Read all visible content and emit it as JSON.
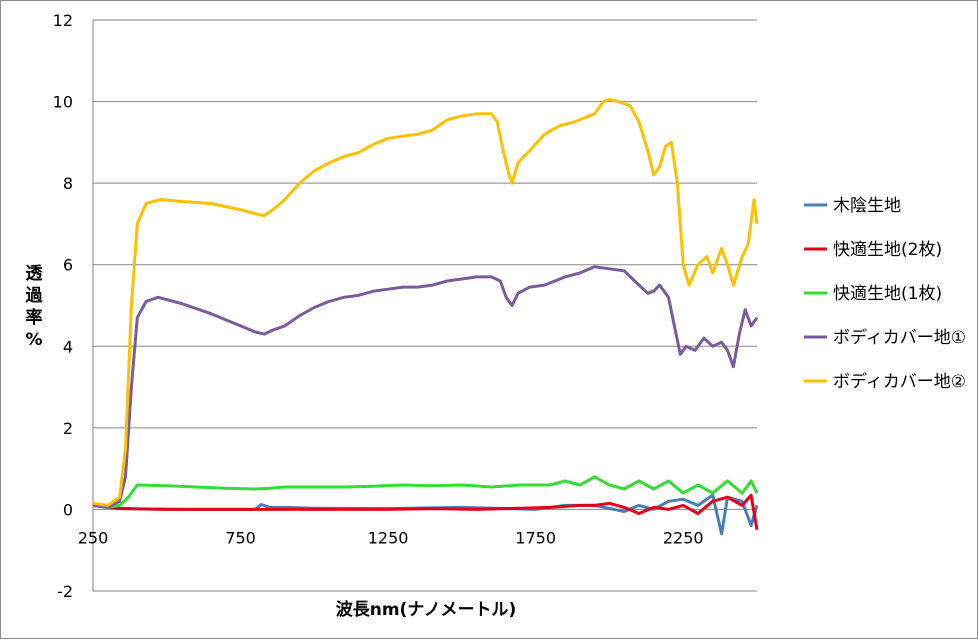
{
  "chart_data": {
    "type": "line",
    "title": "",
    "xlabel": "波長nm(ナノメートル)",
    "ylabel": "透過率%",
    "ylabel_chars": [
      "透",
      "過",
      "率",
      "%"
    ],
    "xlim": [
      250,
      2500
    ],
    "ylim": [
      -2,
      12
    ],
    "x_ticks": [
      250,
      750,
      1250,
      1750,
      2250
    ],
    "y_ticks": [
      -2,
      0,
      2,
      4,
      6,
      8,
      10,
      12
    ],
    "grid": "horizontal",
    "legend_position": "right",
    "series": [
      {
        "name": "木陰生地",
        "color": "#4a7ebb",
        "points": [
          [
            250,
            0.1
          ],
          [
            300,
            0.05
          ],
          [
            330,
            0.03
          ],
          [
            400,
            0.01
          ],
          [
            600,
            0.0
          ],
          [
            800,
            0.0
          ],
          [
            820,
            0.12
          ],
          [
            850,
            0.05
          ],
          [
            900,
            0.05
          ],
          [
            1000,
            0.03
          ],
          [
            1250,
            0.02
          ],
          [
            1500,
            0.05
          ],
          [
            1750,
            0.0
          ],
          [
            1850,
            0.1
          ],
          [
            1950,
            0.1
          ],
          [
            2050,
            -0.05
          ],
          [
            2100,
            0.1
          ],
          [
            2150,
            0.0
          ],
          [
            2200,
            0.2
          ],
          [
            2250,
            0.25
          ],
          [
            2300,
            0.1
          ],
          [
            2350,
            0.35
          ],
          [
            2380,
            -0.6
          ],
          [
            2400,
            0.3
          ],
          [
            2450,
            0.2
          ],
          [
            2480,
            -0.4
          ],
          [
            2500,
            0.1
          ]
        ]
      },
      {
        "name": "快適生地(2枚)",
        "color": "#e3001b",
        "points": [
          [
            250,
            0.15
          ],
          [
            280,
            0.1
          ],
          [
            300,
            0.05
          ],
          [
            330,
            0.03
          ],
          [
            350,
            0.02
          ],
          [
            500,
            0.0
          ],
          [
            750,
            0.0
          ],
          [
            900,
            0.0
          ],
          [
            1100,
            0.0
          ],
          [
            1250,
            0.0
          ],
          [
            1400,
            0.02
          ],
          [
            1550,
            0.0
          ],
          [
            1700,
            0.03
          ],
          [
            1800,
            0.05
          ],
          [
            1900,
            0.1
          ],
          [
            1950,
            0.1
          ],
          [
            2000,
            0.15
          ],
          [
            2050,
            0.05
          ],
          [
            2100,
            -0.1
          ],
          [
            2150,
            0.05
          ],
          [
            2200,
            0.0
          ],
          [
            2250,
            0.1
          ],
          [
            2300,
            -0.1
          ],
          [
            2350,
            0.2
          ],
          [
            2400,
            0.3
          ],
          [
            2450,
            0.1
          ],
          [
            2480,
            0.35
          ],
          [
            2500,
            -0.5
          ]
        ]
      },
      {
        "name": "快適生地(1枚)",
        "color": "#33dd33",
        "points": [
          [
            250,
            0.1
          ],
          [
            300,
            0.05
          ],
          [
            340,
            0.1
          ],
          [
            370,
            0.3
          ],
          [
            400,
            0.6
          ],
          [
            500,
            0.58
          ],
          [
            600,
            0.55
          ],
          [
            700,
            0.52
          ],
          [
            800,
            0.5
          ],
          [
            850,
            0.52
          ],
          [
            900,
            0.55
          ],
          [
            1000,
            0.55
          ],
          [
            1100,
            0.55
          ],
          [
            1200,
            0.57
          ],
          [
            1300,
            0.6
          ],
          [
            1400,
            0.58
          ],
          [
            1500,
            0.6
          ],
          [
            1600,
            0.55
          ],
          [
            1700,
            0.6
          ],
          [
            1800,
            0.6
          ],
          [
            1850,
            0.7
          ],
          [
            1900,
            0.6
          ],
          [
            1950,
            0.8
          ],
          [
            2000,
            0.6
          ],
          [
            2050,
            0.5
          ],
          [
            2100,
            0.7
          ],
          [
            2150,
            0.5
          ],
          [
            2200,
            0.7
          ],
          [
            2250,
            0.4
          ],
          [
            2300,
            0.6
          ],
          [
            2350,
            0.4
          ],
          [
            2400,
            0.7
          ],
          [
            2450,
            0.4
          ],
          [
            2480,
            0.7
          ],
          [
            2500,
            0.4
          ]
        ]
      },
      {
        "name": "ボディカバー地①",
        "color": "#7a5c9e",
        "points": [
          [
            250,
            0.1
          ],
          [
            300,
            0.05
          ],
          [
            340,
            0.2
          ],
          [
            360,
            0.8
          ],
          [
            380,
            3.0
          ],
          [
            400,
            4.7
          ],
          [
            430,
            5.1
          ],
          [
            470,
            5.2
          ],
          [
            550,
            5.05
          ],
          [
            650,
            4.8
          ],
          [
            750,
            4.5
          ],
          [
            800,
            4.35
          ],
          [
            830,
            4.3
          ],
          [
            860,
            4.4
          ],
          [
            900,
            4.5
          ],
          [
            950,
            4.75
          ],
          [
            1000,
            4.95
          ],
          [
            1050,
            5.1
          ],
          [
            1100,
            5.2
          ],
          [
            1150,
            5.25
          ],
          [
            1200,
            5.35
          ],
          [
            1250,
            5.4
          ],
          [
            1300,
            5.45
          ],
          [
            1350,
            5.45
          ],
          [
            1400,
            5.5
          ],
          [
            1450,
            5.6
          ],
          [
            1500,
            5.65
          ],
          [
            1550,
            5.7
          ],
          [
            1600,
            5.7
          ],
          [
            1630,
            5.6
          ],
          [
            1650,
            5.2
          ],
          [
            1670,
            5.0
          ],
          [
            1690,
            5.3
          ],
          [
            1730,
            5.45
          ],
          [
            1780,
            5.5
          ],
          [
            1850,
            5.7
          ],
          [
            1900,
            5.8
          ],
          [
            1950,
            5.95
          ],
          [
            2000,
            5.9
          ],
          [
            2050,
            5.85
          ],
          [
            2100,
            5.5
          ],
          [
            2130,
            5.3
          ],
          [
            2150,
            5.35
          ],
          [
            2170,
            5.5
          ],
          [
            2200,
            5.2
          ],
          [
            2220,
            4.5
          ],
          [
            2240,
            3.8
          ],
          [
            2260,
            4.0
          ],
          [
            2290,
            3.9
          ],
          [
            2320,
            4.2
          ],
          [
            2350,
            4.0
          ],
          [
            2380,
            4.1
          ],
          [
            2400,
            3.9
          ],
          [
            2420,
            3.5
          ],
          [
            2440,
            4.3
          ],
          [
            2460,
            4.9
          ],
          [
            2480,
            4.5
          ],
          [
            2500,
            4.7
          ]
        ]
      },
      {
        "name": "ボディカバー地②",
        "color": "#ffc000",
        "points": [
          [
            250,
            0.15
          ],
          [
            300,
            0.1
          ],
          [
            340,
            0.3
          ],
          [
            360,
            1.5
          ],
          [
            380,
            5.0
          ],
          [
            400,
            7.0
          ],
          [
            430,
            7.5
          ],
          [
            480,
            7.6
          ],
          [
            550,
            7.55
          ],
          [
            650,
            7.5
          ],
          [
            750,
            7.35
          ],
          [
            800,
            7.25
          ],
          [
            830,
            7.2
          ],
          [
            860,
            7.35
          ],
          [
            900,
            7.6
          ],
          [
            950,
            8.0
          ],
          [
            1000,
            8.3
          ],
          [
            1050,
            8.5
          ],
          [
            1100,
            8.65
          ],
          [
            1150,
            8.75
          ],
          [
            1200,
            8.95
          ],
          [
            1250,
            9.1
          ],
          [
            1300,
            9.15
          ],
          [
            1350,
            9.2
          ],
          [
            1400,
            9.3
          ],
          [
            1450,
            9.55
          ],
          [
            1500,
            9.65
          ],
          [
            1550,
            9.7
          ],
          [
            1600,
            9.7
          ],
          [
            1620,
            9.5
          ],
          [
            1640,
            8.8
          ],
          [
            1660,
            8.2
          ],
          [
            1670,
            8.0
          ],
          [
            1690,
            8.5
          ],
          [
            1730,
            8.8
          ],
          [
            1780,
            9.2
          ],
          [
            1830,
            9.4
          ],
          [
            1880,
            9.5
          ],
          [
            1950,
            9.7
          ],
          [
            1980,
            10.0
          ],
          [
            2000,
            10.05
          ],
          [
            2030,
            10.0
          ],
          [
            2070,
            9.9
          ],
          [
            2100,
            9.5
          ],
          [
            2130,
            8.8
          ],
          [
            2150,
            8.2
          ],
          [
            2170,
            8.4
          ],
          [
            2190,
            8.9
          ],
          [
            2210,
            9.0
          ],
          [
            2230,
            8.0
          ],
          [
            2250,
            6.0
          ],
          [
            2270,
            5.5
          ],
          [
            2300,
            6.0
          ],
          [
            2330,
            6.2
          ],
          [
            2350,
            5.8
          ],
          [
            2380,
            6.4
          ],
          [
            2400,
            6.0
          ],
          [
            2420,
            5.5
          ],
          [
            2450,
            6.2
          ],
          [
            2470,
            6.5
          ],
          [
            2490,
            7.6
          ],
          [
            2500,
            7.0
          ]
        ]
      }
    ]
  }
}
